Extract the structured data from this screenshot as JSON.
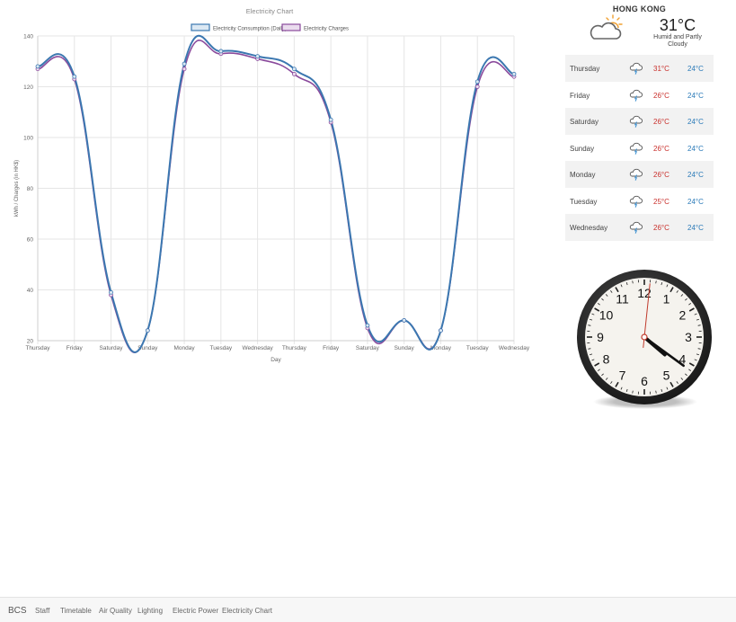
{
  "chart_data": {
    "type": "line",
    "title": "Electricity Chart",
    "xlabel": "Day",
    "ylabel": "kWh / Charges (in HK$)",
    "ylim": [
      20,
      140
    ],
    "yticks": [
      20,
      40,
      60,
      80,
      100,
      120,
      140
    ],
    "grid": true,
    "legend": "top-center",
    "categories": [
      "Thursday",
      "Friday",
      "Saturday",
      "Sunday",
      "Monday",
      "Tuesday",
      "Wednesday",
      "Thursday",
      "Friday",
      "Saturday",
      "Sunday",
      "Monday",
      "Tuesday",
      "Wednesday"
    ],
    "series": [
      {
        "name": "Electricity Consumption (Daily)",
        "color": "#3b77b0",
        "fill": "#dbe8f3",
        "values": [
          128,
          124,
          39,
          24,
          129,
          134,
          132,
          127,
          107,
          26,
          28,
          24,
          122,
          125
        ]
      },
      {
        "name": "Electricity Charges",
        "color": "#8a4a9c",
        "fill": "#eadcee",
        "values": [
          127,
          123,
          38,
          24,
          127,
          133,
          131,
          125,
          106,
          25,
          28,
          24,
          120,
          124
        ]
      }
    ]
  },
  "weather": {
    "city": "HONG KONG",
    "current_temp": "31°C",
    "current_desc": "Humid and Partly Cloudy",
    "current_icon": "partly-cloudy-icon",
    "forecast": [
      {
        "day": "Thursday",
        "high": "31°C",
        "low": "24°C",
        "icon": "thunderstorm-icon"
      },
      {
        "day": "Friday",
        "high": "26°C",
        "low": "24°C",
        "icon": "thunderstorm-icon"
      },
      {
        "day": "Saturday",
        "high": "26°C",
        "low": "24°C",
        "icon": "thunderstorm-icon"
      },
      {
        "day": "Sunday",
        "high": "26°C",
        "low": "24°C",
        "icon": "thunderstorm-icon"
      },
      {
        "day": "Monday",
        "high": "26°C",
        "low": "24°C",
        "icon": "thunderstorm-icon"
      },
      {
        "day": "Tuesday",
        "high": "25°C",
        "low": "24°C",
        "icon": "thunderstorm-icon"
      },
      {
        "day": "Wednesday",
        "high": "26°C",
        "low": "24°C",
        "icon": "thunderstorm-icon"
      }
    ]
  },
  "clock": {
    "numerals": [
      "12",
      "1",
      "2",
      "3",
      "4",
      "5",
      "6",
      "7",
      "8",
      "9",
      "10",
      "11"
    ],
    "hour": 4,
    "minute": 21,
    "second": 1
  },
  "nav": {
    "brand": "BCS",
    "items": [
      "Staff",
      "Timetable",
      "Air Quality",
      "Lighting",
      "Electric Power",
      "Electricity Chart"
    ]
  }
}
